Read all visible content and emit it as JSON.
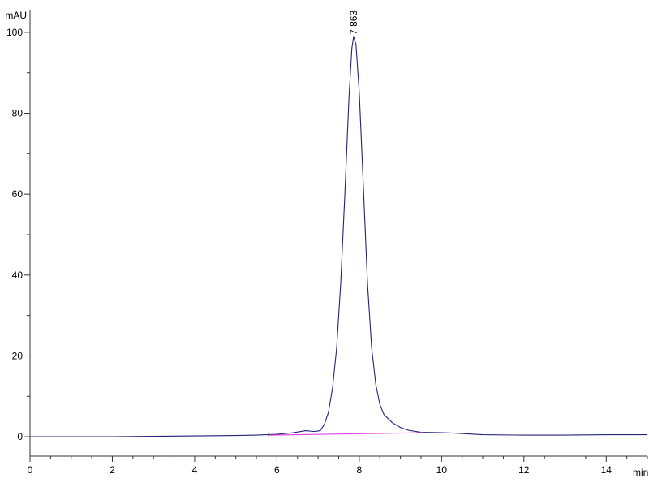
{
  "chart_data": {
    "type": "line",
    "title": "",
    "xlabel": "min",
    "ylabel": "mAU",
    "xlim": [
      0,
      15
    ],
    "ylim": [
      -4.8,
      105.6
    ],
    "x_ticks": [
      0,
      2,
      4,
      6,
      8,
      10,
      12,
      14
    ],
    "y_ticks": [
      0,
      20,
      40,
      60,
      80,
      100
    ],
    "grid": false,
    "series": [
      {
        "color": "#23237a",
        "x": [
          0,
          1,
          2,
          3,
          4,
          5,
          5.5,
          6.0,
          6.4,
          6.7,
          6.9,
          7.05,
          7.15,
          7.25,
          7.35,
          7.45,
          7.55,
          7.65,
          7.75,
          7.82,
          7.863,
          7.92,
          8.0,
          8.1,
          8.2,
          8.3,
          8.4,
          8.5,
          8.6,
          8.8,
          9.0,
          9.2,
          9.5,
          10,
          10.3,
          11,
          12,
          13,
          14,
          15
        ],
        "y": [
          0,
          0,
          0,
          0.1,
          0.2,
          0.3,
          0.4,
          0.6,
          1.0,
          1.5,
          1.3,
          1.5,
          3,
          6,
          12,
          22,
          38,
          60,
          84,
          96,
          99,
          97,
          85,
          62,
          38,
          22,
          13,
          8,
          5.5,
          3.5,
          2.3,
          1.6,
          1.1,
          1.0,
          0.9,
          0.5,
          0.4,
          0.4,
          0.5,
          0.5
        ]
      }
    ],
    "integration_baseline": {
      "color": "#e040e0",
      "x": [
        5.8,
        9.55
      ],
      "y": [
        0.4,
        1.0
      ]
    },
    "peak_labels": [
      {
        "x": 7.863,
        "y": 99,
        "label": "7.863"
      }
    ]
  }
}
